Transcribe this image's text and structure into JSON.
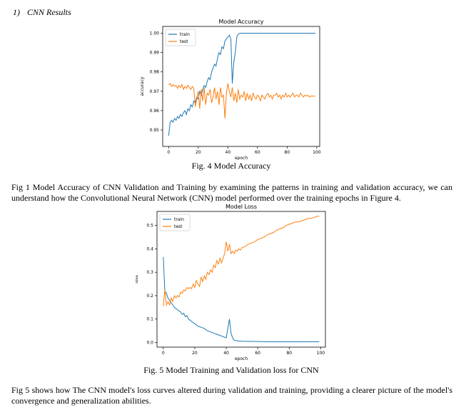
{
  "section": {
    "number": "1)",
    "title": "CNN Results"
  },
  "figures": [
    {
      "caption": "Fig. 4 Model Accuracy",
      "chart_data": {
        "type": "line",
        "title": "Model Accuracy",
        "xlabel": "epoch",
        "ylabel": "accuracy",
        "xlim": [
          -4,
          102
        ],
        "ylim": [
          0.9415,
          1.0035
        ],
        "xticks": [
          0,
          20,
          40,
          60,
          80,
          100
        ],
        "yticks": [
          0.95,
          0.96,
          0.97,
          0.98,
          0.99,
          1.0
        ],
        "ytick_labels": [
          "0.95",
          "0.96",
          "0.97",
          "0.98",
          "0.99",
          "1.00"
        ],
        "legend": "top-left",
        "grid": false,
        "series": [
          {
            "name": "train",
            "color": "#1f77b4",
            "x": [
              0,
              1,
              2,
              3,
              4,
              5,
              6,
              7,
              8,
              9,
              10,
              11,
              12,
              13,
              14,
              15,
              16,
              17,
              18,
              19,
              20,
              21,
              22,
              23,
              24,
              25,
              26,
              27,
              28,
              29,
              30,
              31,
              32,
              33,
              34,
              35,
              36,
              37,
              38,
              39,
              40,
              41,
              42,
              43,
              44,
              45,
              46,
              47,
              48,
              49,
              50,
              52,
              60,
              70,
              80,
              90,
              99
            ],
            "y": [
              0.947,
              0.954,
              0.955,
              0.954,
              0.956,
              0.955,
              0.957,
              0.956,
              0.958,
              0.957,
              0.959,
              0.96,
              0.958,
              0.961,
              0.96,
              0.963,
              0.962,
              0.965,
              0.964,
              0.967,
              0.966,
              0.97,
              0.968,
              0.971,
              0.973,
              0.972,
              0.975,
              0.977,
              0.976,
              0.98,
              0.982,
              0.984,
              0.983,
              0.987,
              0.99,
              0.989,
              0.993,
              0.992,
              0.996,
              0.997,
              0.998,
              0.999,
              0.997,
              0.974,
              0.985,
              0.99,
              0.998,
              0.9995,
              1.0,
              1.0,
              1.0,
              1.0,
              1.0,
              1.0,
              1.0,
              1.0,
              1.0
            ]
          },
          {
            "name": "test",
            "color": "#ff7f0e",
            "x": [
              0,
              1,
              2,
              3,
              4,
              5,
              6,
              7,
              8,
              9,
              10,
              11,
              12,
              13,
              14,
              15,
              16,
              17,
              18,
              19,
              20,
              21,
              22,
              23,
              24,
              25,
              26,
              27,
              28,
              29,
              30,
              31,
              32,
              33,
              34,
              35,
              36,
              37,
              38,
              39,
              40,
              41,
              42,
              43,
              44,
              45,
              46,
              47,
              48,
              49,
              50,
              51,
              52,
              53,
              54,
              55,
              56,
              57,
              58,
              59,
              60,
              61,
              62,
              63,
              64,
              65,
              66,
              67,
              68,
              69,
              70,
              71,
              72,
              73,
              74,
              75,
              76,
              77,
              78,
              79,
              80,
              81,
              82,
              83,
              84,
              85,
              86,
              87,
              88,
              89,
              90,
              91,
              92,
              93,
              94,
              95,
              96,
              97,
              98,
              99
            ],
            "y": [
              0.9735,
              0.974,
              0.9725,
              0.9735,
              0.9725,
              0.973,
              0.9715,
              0.973,
              0.972,
              0.9735,
              0.971,
              0.9725,
              0.9715,
              0.973,
              0.972,
              0.971,
              0.9725,
              0.9715,
              0.962,
              0.966,
              0.97,
              0.961,
              0.971,
              0.965,
              0.972,
              0.963,
              0.969,
              0.968,
              0.971,
              0.964,
              0.967,
              0.972,
              0.966,
              0.97,
              0.963,
              0.972,
              0.967,
              0.968,
              0.956,
              0.969,
              0.974,
              0.97,
              0.967,
              0.972,
              0.965,
              0.969,
              0.964,
              0.971,
              0.966,
              0.968,
              0.967,
              0.97,
              0.965,
              0.969,
              0.966,
              0.968,
              0.965,
              0.969,
              0.967,
              0.966,
              0.968,
              0.967,
              0.965,
              0.968,
              0.967,
              0.966,
              0.968,
              0.969,
              0.967,
              0.968,
              0.966,
              0.968,
              0.968,
              0.969,
              0.967,
              0.968,
              0.966,
              0.968,
              0.967,
              0.969,
              0.967,
              0.968,
              0.967,
              0.968,
              0.969,
              0.967,
              0.968,
              0.968,
              0.967,
              0.969,
              0.968,
              0.967,
              0.968,
              0.9675,
              0.968,
              0.967,
              0.9675,
              0.9675,
              0.9675,
              0.9675
            ]
          }
        ]
      }
    },
    {
      "caption": "Fig. 5 Model Training and Validation loss for CNN",
      "chart_data": {
        "type": "line",
        "title": "Model Loss",
        "xlabel": "epoch",
        "ylabel": "loss",
        "xlim": [
          -4,
          103
        ],
        "ylim": [
          -0.02,
          0.56
        ],
        "xticks": [
          0,
          20,
          40,
          60,
          80,
          100
        ],
        "yticks": [
          0.0,
          0.1,
          0.2,
          0.3,
          0.4,
          0.5
        ],
        "ytick_labels": [
          "0.0",
          "0.1",
          "0.2",
          "0.3",
          "0.4",
          "0.5"
        ],
        "legend": "top-left",
        "grid": false,
        "series": [
          {
            "name": "train",
            "color": "#1f77b4",
            "x": [
              0,
              1,
              2,
              3,
              4,
              5,
              6,
              7,
              8,
              9,
              10,
              11,
              12,
              13,
              14,
              15,
              16,
              17,
              18,
              19,
              20,
              22,
              24,
              26,
              28,
              30,
              32,
              34,
              36,
              38,
              40,
              41,
              42,
              43,
              44,
              45,
              46,
              48,
              50,
              60,
              70,
              80,
              90,
              99
            ],
            "y": [
              0.365,
              0.22,
              0.21,
              0.19,
              0.18,
              0.17,
              0.16,
              0.15,
              0.145,
              0.14,
              0.135,
              0.13,
              0.12,
              0.125,
              0.11,
              0.115,
              0.1,
              0.095,
              0.09,
              0.085,
              0.08,
              0.07,
              0.065,
              0.06,
              0.05,
              0.045,
              0.04,
              0.035,
              0.03,
              0.025,
              0.02,
              0.06,
              0.1,
              0.04,
              0.02,
              0.01,
              0.008,
              0.006,
              0.005,
              0.004,
              0.003,
              0.003,
              0.003,
              0.003
            ]
          },
          {
            "name": "test",
            "color": "#ff7f0e",
            "x": [
              0,
              1,
              2,
              3,
              4,
              5,
              6,
              7,
              8,
              9,
              10,
              11,
              12,
              13,
              14,
              15,
              16,
              17,
              18,
              19,
              20,
              21,
              22,
              23,
              24,
              25,
              26,
              27,
              28,
              29,
              30,
              31,
              32,
              33,
              34,
              35,
              36,
              37,
              38,
              39,
              40,
              41,
              42,
              43,
              44,
              45,
              46,
              47,
              48,
              49,
              50,
              52,
              54,
              56,
              58,
              60,
              62,
              64,
              66,
              68,
              70,
              72,
              74,
              76,
              78,
              80,
              82,
              84,
              86,
              88,
              90,
              92,
              94,
              96,
              98,
              99
            ],
            "y": [
              0.155,
              0.225,
              0.16,
              0.175,
              0.16,
              0.19,
              0.175,
              0.2,
              0.19,
              0.2,
              0.195,
              0.215,
              0.21,
              0.225,
              0.22,
              0.235,
              0.23,
              0.235,
              0.23,
              0.25,
              0.235,
              0.265,
              0.25,
              0.24,
              0.28,
              0.26,
              0.285,
              0.27,
              0.3,
              0.29,
              0.31,
              0.3,
              0.33,
              0.32,
              0.35,
              0.335,
              0.36,
              0.34,
              0.36,
              0.38,
              0.43,
              0.39,
              0.42,
              0.38,
              0.39,
              0.38,
              0.395,
              0.39,
              0.4,
              0.395,
              0.405,
              0.41,
              0.42,
              0.425,
              0.43,
              0.44,
              0.445,
              0.45,
              0.46,
              0.465,
              0.47,
              0.48,
              0.485,
              0.49,
              0.5,
              0.505,
              0.51,
              0.515,
              0.515,
              0.52,
              0.525,
              0.53,
              0.53,
              0.535,
              0.54,
              0.54
            ]
          }
        ]
      }
    }
  ],
  "paragraphs": [
    "Fig 1 Model Accuracy of CNN Validation and Training by examining the patterns in training and validation accuracy, we can understand how the Convolutional Neural Network (CNN) model performed over the training epochs in Figure 4.",
    "Fig 5 shows how The CNN model's loss curves altered during validation and training, providing a clearer picture of the model's convergence and generalization abilities."
  ]
}
